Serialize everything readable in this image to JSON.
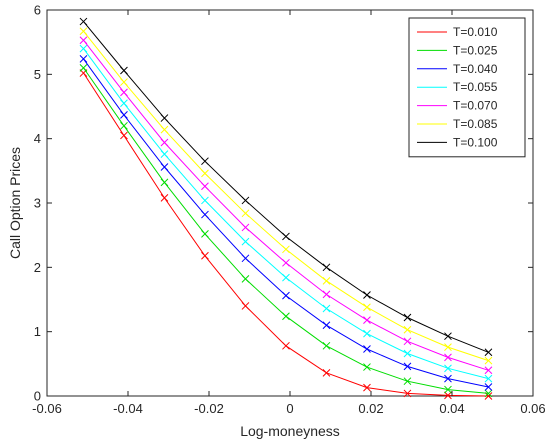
{
  "chart_data": {
    "type": "line",
    "title": "",
    "xlabel": "Log-moneyness",
    "ylabel": "Call Option Prices",
    "xlim": [
      -0.06,
      0.06
    ],
    "ylim": [
      0,
      6
    ],
    "xticks": [
      -0.06,
      -0.04,
      -0.02,
      0,
      0.02,
      0.04,
      0.06
    ],
    "xtick_labels": [
      "-0.06",
      "-0.04",
      "-0.02",
      "0",
      "0.02",
      "0.04",
      "0.06"
    ],
    "yticks": [
      0,
      1,
      2,
      3,
      4,
      5,
      6
    ],
    "ytick_labels": [
      "0",
      "1",
      "2",
      "3",
      "4",
      "5",
      "6"
    ],
    "grid": false,
    "legend_position": "top-right",
    "marker": "x",
    "x": [
      -0.051,
      -0.041,
      -0.031,
      -0.021,
      -0.011,
      -0.001,
      0.009,
      0.019,
      0.029,
      0.039,
      0.049
    ],
    "series": [
      {
        "name": "T=0.010",
        "color": "#ff0000",
        "values": [
          5.02,
          4.05,
          3.08,
          2.18,
          1.4,
          0.78,
          0.36,
          0.13,
          0.04,
          0.01,
          0.0
        ]
      },
      {
        "name": "T=0.025",
        "color": "#00dd00",
        "values": [
          5.1,
          4.2,
          3.32,
          2.52,
          1.82,
          1.24,
          0.78,
          0.45,
          0.23,
          0.1,
          0.04
        ]
      },
      {
        "name": "T=0.040",
        "color": "#0000ff",
        "values": [
          5.24,
          4.37,
          3.56,
          2.82,
          2.14,
          1.56,
          1.1,
          0.73,
          0.46,
          0.27,
          0.14
        ]
      },
      {
        "name": "T=0.055",
        "color": "#00ffff",
        "values": [
          5.4,
          4.55,
          3.76,
          3.04,
          2.4,
          1.84,
          1.36,
          0.97,
          0.66,
          0.43,
          0.27
        ]
      },
      {
        "name": "T=0.070",
        "color": "#ff00ff",
        "values": [
          5.53,
          4.72,
          3.94,
          3.26,
          2.62,
          2.07,
          1.58,
          1.18,
          0.85,
          0.6,
          0.4
        ]
      },
      {
        "name": "T=0.085",
        "color": "#ffff00",
        "values": [
          5.67,
          4.88,
          4.14,
          3.46,
          2.84,
          2.28,
          1.79,
          1.38,
          1.03,
          0.76,
          0.55
        ]
      },
      {
        "name": "T=0.100",
        "color": "#000000",
        "values": [
          5.82,
          5.06,
          4.32,
          3.65,
          3.04,
          2.48,
          2.0,
          1.57,
          1.22,
          0.93,
          0.68
        ]
      }
    ]
  }
}
